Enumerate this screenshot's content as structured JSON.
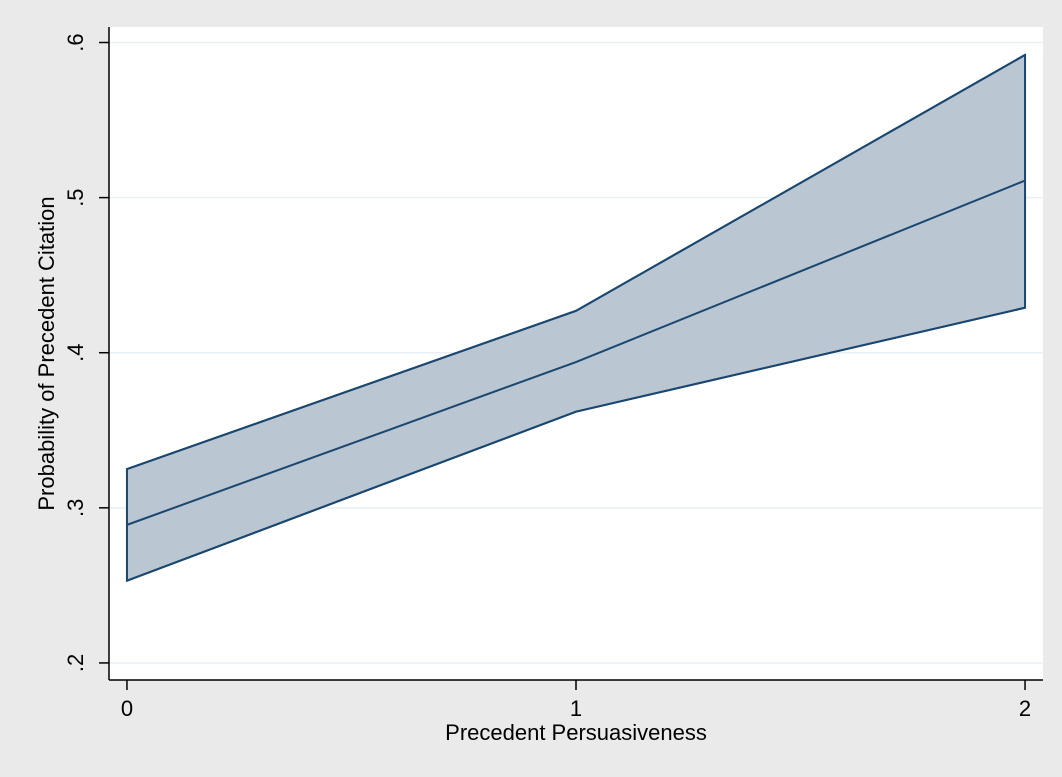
{
  "chart_data": {
    "type": "line",
    "title": "",
    "xlabel": "Precedent Persuasiveness",
    "ylabel": "Probability of Precedent Citation",
    "x": [
      0,
      1,
      2
    ],
    "x_tick_values": [
      0,
      1,
      2
    ],
    "x_tick_labels": [
      "0",
      "1",
      "2"
    ],
    "y_tick_values": [
      0.2,
      0.3,
      0.4,
      0.5,
      0.6
    ],
    "y_tick_labels": [
      ".2",
      ".3",
      ".4",
      ".5",
      ".6"
    ],
    "xlim": [
      -0.04,
      2.04
    ],
    "ylim": [
      0.189,
      0.61
    ],
    "grid": true,
    "legend": "none",
    "series": [
      {
        "role": "point-estimate",
        "values": [
          0.289,
          0.394,
          0.511
        ]
      },
      {
        "role": "confidence-interval-lower",
        "values": [
          0.253,
          0.362,
          0.429
        ]
      },
      {
        "role": "confidence-interval-upper",
        "values": [
          0.325,
          0.427,
          0.592
        ]
      }
    ],
    "colors": {
      "background": "#eaeaea",
      "plot_area": "#ffffff",
      "gridline": "#e8f0f4",
      "band_fill": "#bac6d2",
      "line": "#1a4770",
      "axis": "#000000"
    }
  }
}
